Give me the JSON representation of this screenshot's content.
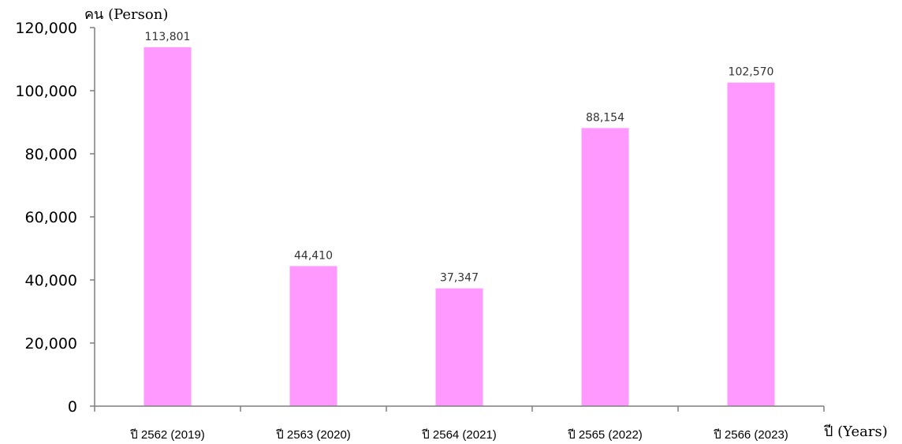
{
  "chart_data": {
    "type": "bar",
    "ylabel": "คน (Person)",
    "xlabel": "ปี (Years)",
    "categories": [
      "ปี 2562 (2019)",
      "ปี 2563 (2020)",
      "ปี 2564 (2021)",
      "ปี 2565 (2022)",
      "ปี 2566 (2023)"
    ],
    "values": [
      113801,
      44410,
      37347,
      88154,
      102570
    ],
    "data_labels": [
      "113,801",
      "44,410",
      "37,347",
      "88,154",
      "102,570"
    ],
    "ylim": [
      0,
      120000
    ],
    "yticks": [
      0,
      20000,
      40000,
      60000,
      80000,
      100000,
      120000
    ],
    "ytick_labels": [
      "0",
      "20,000",
      "40,000",
      "60,000",
      "80,000",
      "100,000",
      "120,000"
    ],
    "bar_color": "#ff99ff",
    "grid": false,
    "legend": "none"
  }
}
